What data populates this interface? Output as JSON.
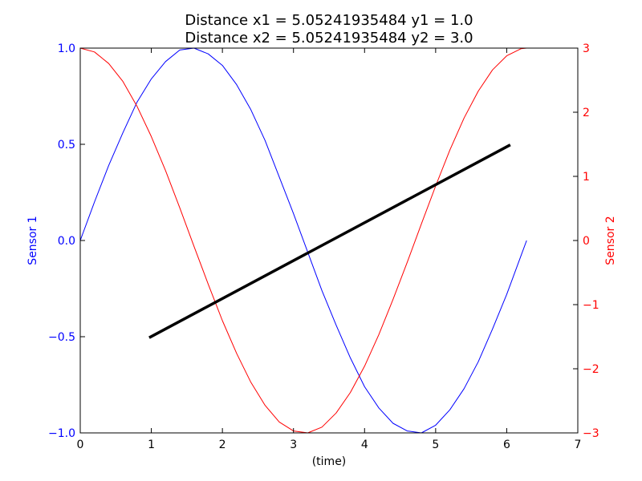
{
  "chart_data": {
    "type": "line",
    "title_lines": [
      "Distance x1 = 5.05241935484 y1 = 1.0",
      "Distance x2 = 5.05241935484 y2 = 3.0"
    ],
    "xlabel": "(time)",
    "ylabel_left": "Sensor 1",
    "ylabel_right": "Sensor 2",
    "xlim": [
      0,
      7
    ],
    "ylim_left": [
      -1.0,
      1.0
    ],
    "ylim_right": [
      -3,
      3
    ],
    "xticks": [
      "0",
      "1",
      "2",
      "3",
      "4",
      "5",
      "6",
      "7"
    ],
    "yticks_left": [
      "1.0",
      "0.5",
      "0.0",
      "−0.5",
      "−1.0"
    ],
    "yticks_right": [
      "3",
      "2",
      "1",
      "0",
      "−1",
      "−2",
      "−3"
    ],
    "grid": false,
    "colors": {
      "left": "#0000ff",
      "right": "#ff0000",
      "line": "#000000"
    },
    "series": [
      {
        "axis": "left",
        "x": [
          0.0,
          0.2,
          0.4,
          0.6,
          0.8,
          1.0,
          1.2,
          1.4,
          1.6,
          1.8,
          2.0,
          2.2,
          2.4,
          2.6,
          2.8,
          3.0,
          3.2,
          3.4,
          3.6,
          3.8,
          4.0,
          4.2,
          4.4,
          4.6,
          4.8,
          5.0,
          5.2,
          5.4,
          5.6,
          5.8,
          6.0,
          6.2,
          6.28
        ],
        "values": [
          0.0,
          0.2,
          0.39,
          0.56,
          0.72,
          0.84,
          0.93,
          0.99,
          1.0,
          0.97,
          0.91,
          0.81,
          0.68,
          0.52,
          0.33,
          0.14,
          -0.06,
          -0.26,
          -0.44,
          -0.61,
          -0.76,
          -0.87,
          -0.95,
          -0.99,
          -1.0,
          -0.96,
          -0.88,
          -0.77,
          -0.63,
          -0.46,
          -0.28,
          -0.08,
          0.0
        ]
      },
      {
        "axis": "right",
        "x": [
          0.0,
          0.2,
          0.4,
          0.6,
          0.8,
          1.0,
          1.2,
          1.4,
          1.6,
          1.8,
          2.0,
          2.2,
          2.4,
          2.6,
          2.8,
          3.0,
          3.2,
          3.4,
          3.6,
          3.8,
          4.0,
          4.2,
          4.4,
          4.6,
          4.8,
          5.0,
          5.2,
          5.4,
          5.6,
          5.8,
          6.0,
          6.2,
          6.28
        ],
        "values": [
          3.0,
          2.94,
          2.76,
          2.48,
          2.09,
          1.62,
          1.09,
          0.51,
          -0.09,
          -0.68,
          -1.25,
          -1.76,
          -2.21,
          -2.57,
          -2.83,
          -2.97,
          -3.0,
          -2.91,
          -2.69,
          -2.37,
          -1.96,
          -1.47,
          -0.92,
          -0.34,
          0.26,
          0.85,
          1.41,
          1.91,
          2.33,
          2.66,
          2.88,
          2.99,
          3.0
        ]
      },
      {
        "axis": "left",
        "x": [
          0.97,
          6.05
        ],
        "values": [
          -0.505,
          0.497
        ]
      }
    ]
  }
}
